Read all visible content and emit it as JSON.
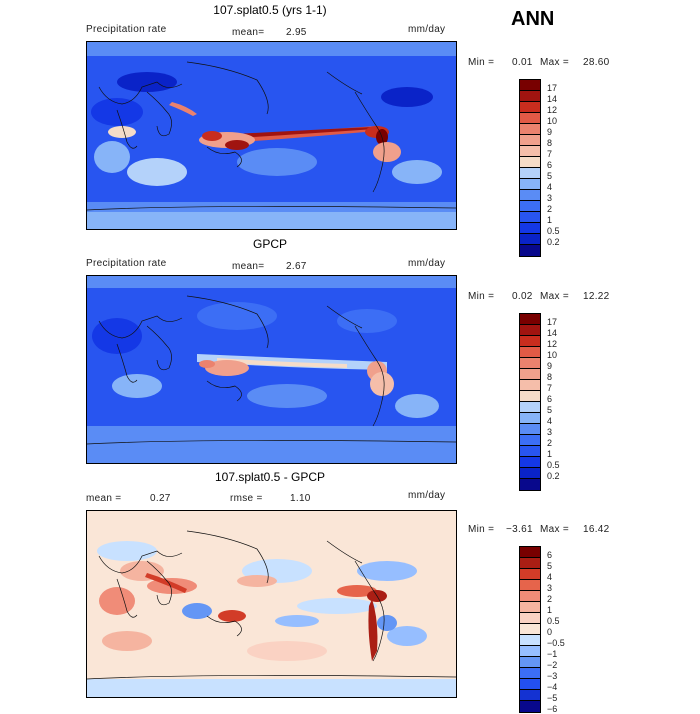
{
  "season": "ANN",
  "colors": {
    "precip": [
      "#08088c",
      "#0a23c8",
      "#1438e6",
      "#2855f0",
      "#3c6ef5",
      "#5a8cf5",
      "#87b4f8",
      "#b4d2fa",
      "#f5dcc8",
      "#f5beaa",
      "#f0a08c",
      "#eb826e",
      "#e15a46",
      "#c82d1e",
      "#a01410",
      "#780000"
    ],
    "diff": [
      "#08088c",
      "#1432d2",
      "#2350f0",
      "#3c6ef5",
      "#6496f5",
      "#96beff",
      "#c8e1ff",
      "#fae6d7",
      "#fad2c3",
      "#f5b4a0",
      "#f08c78",
      "#e6644b",
      "#d23c28",
      "#aa1e14",
      "#780000"
    ]
  },
  "panels": [
    {
      "title": "107.splat0.5 (yrs 1-1)",
      "left_label": "Precipitation rate",
      "mean_label": "mean=",
      "mean_value": "2.95",
      "units": "mm/day",
      "min_label": "Min =",
      "min_value": "0.01",
      "max_label": "Max =",
      "max_value": "28.60",
      "levels": [
        "17",
        "14",
        "12",
        "10",
        "9",
        "8",
        "7",
        "6",
        "5",
        "4",
        "3",
        "2",
        "1",
        "0.5",
        "0.2"
      ]
    },
    {
      "title": "GPCP",
      "left_label": "Precipitation rate",
      "mean_label": "mean=",
      "mean_value": "2.67",
      "units": "mm/day",
      "min_label": "Min =",
      "min_value": "0.02",
      "max_label": "Max =",
      "max_value": "12.22",
      "levels": [
        "17",
        "14",
        "12",
        "10",
        "9",
        "8",
        "7",
        "6",
        "5",
        "4",
        "3",
        "2",
        "1",
        "0.5",
        "0.2"
      ]
    },
    {
      "title": "107.splat0.5 - GPCP",
      "mean_label": "mean =",
      "mean_value": "0.27",
      "rmse_label": "rmse =",
      "rmse_value": "1.10",
      "units": "mm/day",
      "min_label": "Min =",
      "min_value": "−3.61",
      "max_label": "Max =",
      "max_value": "16.42",
      "levels": [
        "6",
        "5",
        "4",
        "3",
        "2",
        "1",
        "0.5",
        "0",
        "−0.5",
        "−1",
        "−2",
        "−3",
        "−4",
        "−5",
        "−6"
      ]
    }
  ]
}
